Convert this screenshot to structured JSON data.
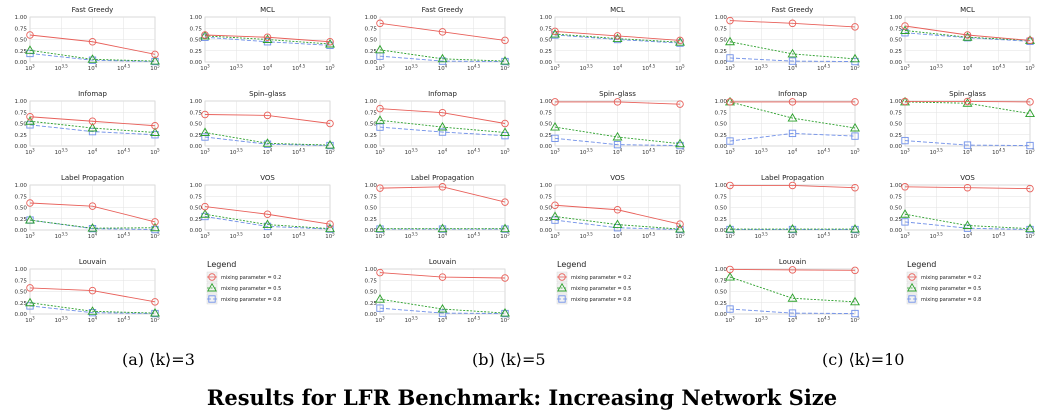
{
  "main_title": "Results for LFR Benchmark: Increasing Network Size",
  "captions": [
    "(a) ⟨k⟩=3",
    "(b) ⟨k⟩=5",
    "(c) ⟨k⟩=10"
  ],
  "legend": {
    "title": "Legend",
    "entries": [
      "mixing parameter = 0.2",
      "mixing parameter = 0.5",
      "mixing parameter = 0.8"
    ]
  },
  "colors": {
    "mu_0_2": "#e8605a",
    "mu_0_5": "#2ca02c",
    "mu_0_8": "#6f8fe8"
  },
  "chart_data": {
    "type": "line",
    "x_scale": "log10",
    "x_values": [
      1000,
      10000,
      100000
    ],
    "x_ticks": [
      1000,
      3162,
      10000,
      31623,
      100000
    ],
    "x_tick_labels": [
      [
        "10",
        "3"
      ],
      [
        "10",
        "3.5"
      ],
      [
        "10",
        "4"
      ],
      [
        "10",
        "4.5"
      ],
      [
        "10",
        "5"
      ]
    ],
    "ylim": [
      0,
      1
    ],
    "y_ticks": [
      "0.00",
      "0.25",
      "0.50",
      "0.75",
      "1.00"
    ],
    "grid": true,
    "series_names": [
      "mixing parameter = 0.2",
      "mixing parameter = 0.5",
      "mixing parameter = 0.8"
    ],
    "panels": [
      {
        "caption": "(a) ⟨k⟩=3",
        "methods": [
          {
            "title": "Fast Greedy",
            "series": [
              [
                0.6,
                0.45,
                0.17
              ],
              [
                0.26,
                0.06,
                0.02
              ],
              [
                0.19,
                0.04,
                0.01
              ]
            ]
          },
          {
            "title": "MCL",
            "series": [
              [
                0.6,
                0.55,
                0.45
              ],
              [
                0.58,
                0.5,
                0.4
              ],
              [
                0.55,
                0.45,
                0.37
              ]
            ]
          },
          {
            "title": "Infomap",
            "series": [
              [
                0.65,
                0.55,
                0.45
              ],
              [
                0.55,
                0.4,
                0.3
              ],
              [
                0.47,
                0.32,
                0.25
              ]
            ]
          },
          {
            "title": "Spin–glass",
            "series": [
              [
                0.7,
                0.68,
                0.5
              ],
              [
                0.3,
                0.06,
                0.02
              ],
              [
                0.2,
                0.04,
                0.01
              ]
            ]
          },
          {
            "title": "Label Propagation",
            "series": [
              [
                0.6,
                0.53,
                0.18
              ],
              [
                0.22,
                0.04,
                0.05
              ],
              [
                0.22,
                0.03,
                0.01
              ]
            ]
          },
          {
            "title": "VOS",
            "series": [
              [
                0.52,
                0.35,
                0.13
              ],
              [
                0.35,
                0.12,
                0.03
              ],
              [
                0.3,
                0.08,
                0.02
              ]
            ]
          },
          {
            "title": "Louvain",
            "series": [
              [
                0.58,
                0.52,
                0.27
              ],
              [
                0.25,
                0.06,
                0.02
              ],
              [
                0.18,
                0.03,
                0.01
              ]
            ]
          }
        ]
      },
      {
        "caption": "(b) ⟨k⟩=5",
        "methods": [
          {
            "title": "Fast Greedy",
            "series": [
              [
                0.86,
                0.67,
                0.48
              ],
              [
                0.27,
                0.07,
                0.02
              ],
              [
                0.13,
                0.02,
                0.01
              ]
            ]
          },
          {
            "title": "MCL",
            "series": [
              [
                0.68,
                0.58,
                0.48
              ],
              [
                0.62,
                0.52,
                0.44
              ],
              [
                0.6,
                0.5,
                0.42
              ]
            ]
          },
          {
            "title": "Infomap",
            "series": [
              [
                0.83,
                0.74,
                0.5
              ],
              [
                0.57,
                0.42,
                0.3
              ],
              [
                0.42,
                0.31,
                0.23
              ]
            ]
          },
          {
            "title": "Spin–glass",
            "series": [
              [
                0.98,
                0.98,
                0.93
              ],
              [
                0.42,
                0.2,
                0.05
              ],
              [
                0.17,
                0.03,
                0.01
              ]
            ]
          },
          {
            "title": "Label Propagation",
            "series": [
              [
                0.93,
                0.96,
                0.62
              ],
              [
                0.03,
                0.03,
                0.03
              ],
              [
                0.02,
                0.02,
                0.02
              ]
            ]
          },
          {
            "title": "VOS",
            "series": [
              [
                0.55,
                0.45,
                0.13
              ],
              [
                0.3,
                0.12,
                0.02
              ],
              [
                0.22,
                0.05,
                0.01
              ]
            ]
          },
          {
            "title": "Louvain",
            "series": [
              [
                0.92,
                0.82,
                0.8
              ],
              [
                0.33,
                0.11,
                0.02
              ],
              [
                0.13,
                0.02,
                0.01
              ]
            ]
          }
        ]
      },
      {
        "caption": "(c) ⟨k⟩=10",
        "methods": [
          {
            "title": "Fast Greedy",
            "series": [
              [
                0.92,
                0.86,
                0.78
              ],
              [
                0.45,
                0.18,
                0.07
              ],
              [
                0.09,
                0.02,
                0.01
              ]
            ]
          },
          {
            "title": "MCL",
            "series": [
              [
                0.8,
                0.6,
                0.48
              ],
              [
                0.7,
                0.55,
                0.48
              ],
              [
                0.65,
                0.54,
                0.46
              ]
            ]
          },
          {
            "title": "Infomap",
            "series": [
              [
                0.98,
                0.98,
                0.98
              ],
              [
                0.98,
                0.62,
                0.4
              ],
              [
                0.11,
                0.28,
                0.22
              ]
            ]
          },
          {
            "title": "Spin–glass",
            "series": [
              [
                0.99,
                0.99,
                0.98
              ],
              [
                0.98,
                0.95,
                0.72
              ],
              [
                0.12,
                0.02,
                0.01
              ]
            ]
          },
          {
            "title": "Label Propagation",
            "series": [
              [
                0.99,
                0.99,
                0.94
              ],
              [
                0.02,
                0.02,
                0.02
              ],
              [
                0.01,
                0.01,
                0.01
              ]
            ]
          },
          {
            "title": "VOS",
            "series": [
              [
                0.96,
                0.94,
                0.92
              ],
              [
                0.35,
                0.1,
                0.03
              ],
              [
                0.18,
                0.04,
                0.01
              ]
            ]
          },
          {
            "title": "Louvain",
            "series": [
              [
                0.99,
                0.98,
                0.97
              ],
              [
                0.82,
                0.35,
                0.27
              ],
              [
                0.11,
                0.02,
                0.01
              ]
            ]
          }
        ]
      }
    ]
  }
}
